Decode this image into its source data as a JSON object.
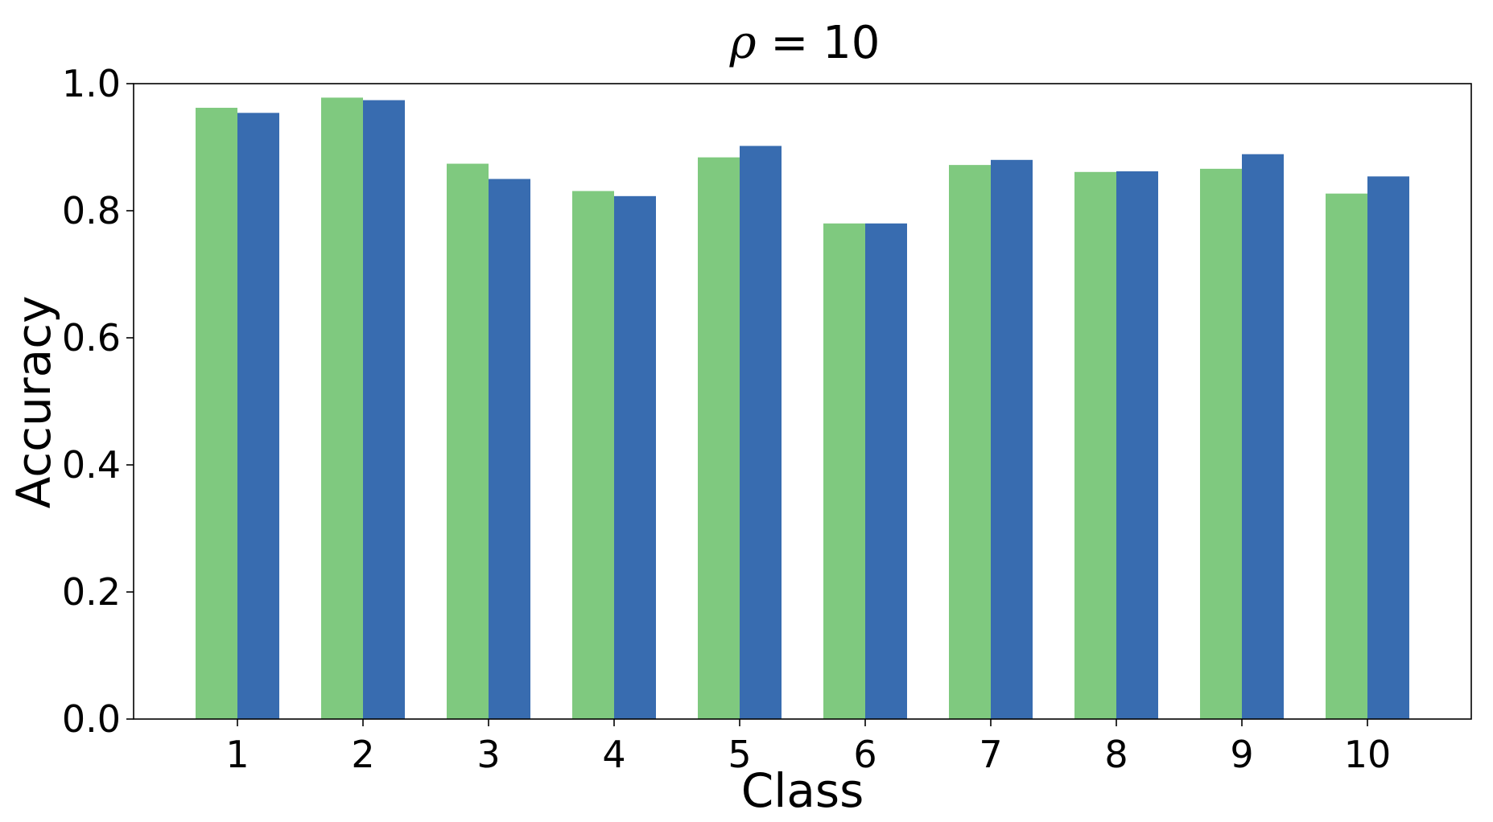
{
  "chart_data": {
    "type": "bar",
    "title": {
      "symbol": "ρ",
      "rest": " = 10"
    },
    "xlabel": "Class",
    "ylabel": "Accuracy",
    "categories": [
      "1",
      "2",
      "3",
      "4",
      "5",
      "6",
      "7",
      "8",
      "9",
      "10"
    ],
    "series": [
      {
        "color": "#7fc97f",
        "values": [
          0.962,
          0.978,
          0.874,
          0.831,
          0.884,
          0.78,
          0.872,
          0.861,
          0.866,
          0.827
        ]
      },
      {
        "color": "#386cb0",
        "values": [
          0.954,
          0.974,
          0.85,
          0.823,
          0.902,
          0.78,
          0.88,
          0.862,
          0.889,
          0.854
        ]
      }
    ],
    "ylim": [
      0,
      1.0
    ],
    "yticks": [
      "0.0",
      "0.2",
      "0.4",
      "0.6",
      "0.8",
      "1.0"
    ],
    "grid": false
  }
}
